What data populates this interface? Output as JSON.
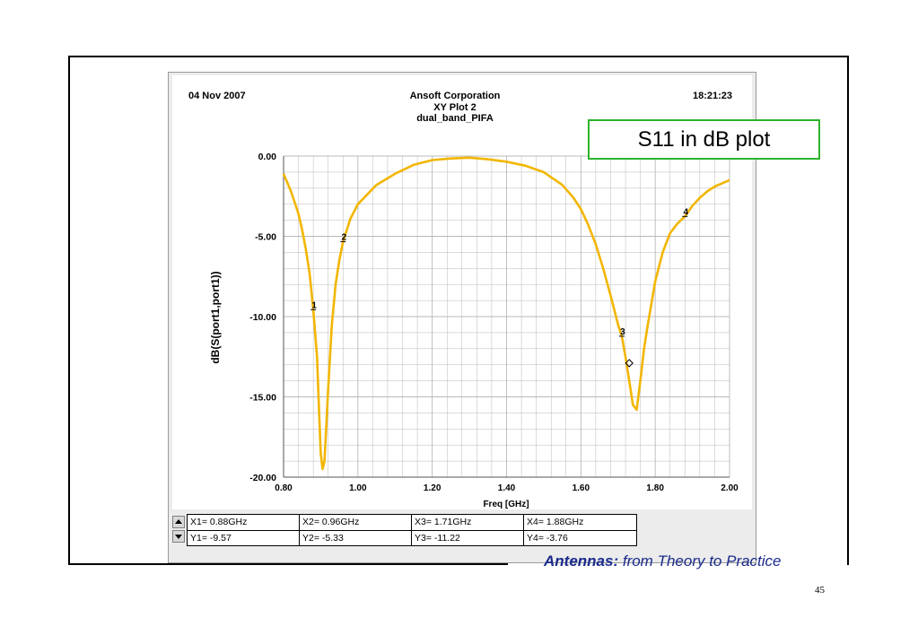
{
  "header": {
    "date": "04 Nov 2007",
    "company": "Ansoft Corporation",
    "plot_name": "XY Plot 2",
    "design": "dual_band_PIFA",
    "time": "18:21:23"
  },
  "callout": "S11 in dB plot",
  "footer": {
    "caption_bold": "Antennas:",
    "caption_rest": " from Theory to Practice",
    "page_number": "45"
  },
  "markers_table": {
    "x_cells": [
      "X1= 0.88GHz",
      "X2= 0.96GHz",
      "X3= 1.71GHz",
      "X4= 1.88GHz"
    ],
    "y_cells": [
      "Y1= -9.57",
      "Y2= -5.33",
      "Y3= -11.22",
      "Y4= -3.76"
    ]
  },
  "colors": {
    "curve": "#f2b600",
    "grid": "#b8b8b8",
    "callout_border": "#2cb32c",
    "caption": "#1a2a8c"
  },
  "chart_data": {
    "type": "line",
    "xlabel": "Freq [GHz]",
    "ylabel": "dB(S(port1,port1))",
    "xlim": [
      0.8,
      2.0
    ],
    "ylim": [
      -20.0,
      0.0
    ],
    "x_ticks": [
      "0.80",
      "1.00",
      "1.20",
      "1.40",
      "1.60",
      "1.80",
      "2.00"
    ],
    "y_ticks": [
      "0.00",
      "-5.00",
      "-10.00",
      "-15.00",
      "-20.00"
    ],
    "grid": true,
    "series": [
      {
        "x": [
          0.8,
          0.82,
          0.84,
          0.85,
          0.86,
          0.87,
          0.88,
          0.89,
          0.895,
          0.9,
          0.905,
          0.91,
          0.92,
          0.93,
          0.94,
          0.95,
          0.96,
          0.98,
          1.0,
          1.05,
          1.1,
          1.15,
          1.2,
          1.25,
          1.3,
          1.35,
          1.4,
          1.45,
          1.5,
          1.55,
          1.58,
          1.6,
          1.62,
          1.64,
          1.66,
          1.68,
          1.7,
          1.71,
          1.72,
          1.73,
          1.74,
          1.75,
          1.76,
          1.77,
          1.78,
          1.8,
          1.82,
          1.84,
          1.86,
          1.88,
          1.9,
          1.92,
          1.94,
          1.96,
          1.98,
          2.0
        ],
        "y": [
          -1.1,
          -2.2,
          -3.6,
          -4.6,
          -5.8,
          -7.3,
          -9.57,
          -12.5,
          -15.5,
          -18.5,
          -19.5,
          -19.0,
          -14.5,
          -10.5,
          -8.0,
          -6.5,
          -5.33,
          -3.9,
          -3.0,
          -1.8,
          -1.1,
          -0.55,
          -0.25,
          -0.15,
          -0.1,
          -0.2,
          -0.35,
          -0.6,
          -1.0,
          -1.8,
          -2.6,
          -3.3,
          -4.3,
          -5.5,
          -7.0,
          -8.7,
          -10.5,
          -11.22,
          -12.5,
          -14.0,
          -15.5,
          -15.8,
          -14.0,
          -12.0,
          -10.5,
          -7.8,
          -6.0,
          -4.8,
          -4.2,
          -3.76,
          -3.1,
          -2.6,
          -2.2,
          -1.9,
          -1.7,
          -1.5
        ]
      }
    ],
    "markers": [
      {
        "label": "1",
        "x": 0.88,
        "y": -9.57
      },
      {
        "label": "2",
        "x": 0.96,
        "y": -5.33
      },
      {
        "label": "3",
        "x": 1.71,
        "y": -11.22
      },
      {
        "label": "4",
        "x": 1.88,
        "y": -3.76
      }
    ]
  }
}
